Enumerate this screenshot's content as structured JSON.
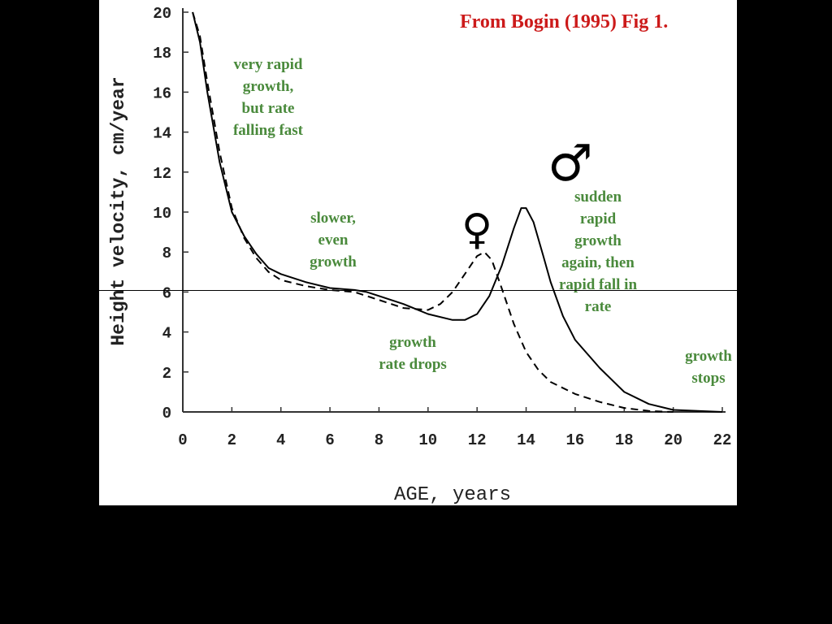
{
  "chart_data": {
    "type": "line",
    "title": "From Bogin (1995) Fig 1.",
    "xlabel": "AGE, years",
    "ylabel": "Height velocity, cm/year",
    "xlim": [
      0,
      22
    ],
    "ylim": [
      0,
      20
    ],
    "xticks": [
      "0",
      "2",
      "4",
      "6",
      "8",
      "10",
      "12",
      "14",
      "16",
      "18",
      "20",
      "22"
    ],
    "yticks": [
      "0",
      "2",
      "4",
      "6",
      "8",
      "10",
      "12",
      "14",
      "16",
      "18",
      "20"
    ],
    "series": [
      {
        "symbol": "♂",
        "style": "solid",
        "points": [
          [
            0.4,
            20
          ],
          [
            0.7,
            18.5
          ],
          [
            1,
            16
          ],
          [
            1.5,
            12.5
          ],
          [
            2,
            10
          ],
          [
            2.5,
            8.8
          ],
          [
            3,
            7.9
          ],
          [
            3.5,
            7.2
          ],
          [
            4,
            6.9
          ],
          [
            5,
            6.5
          ],
          [
            6,
            6.2
          ],
          [
            7,
            6.1
          ],
          [
            7.5,
            6.0
          ],
          [
            8,
            5.8
          ],
          [
            9,
            5.4
          ],
          [
            10,
            4.9
          ],
          [
            11,
            4.6
          ],
          [
            11.5,
            4.6
          ],
          [
            12,
            4.9
          ],
          [
            12.5,
            5.8
          ],
          [
            13,
            7.3
          ],
          [
            13.5,
            9.2
          ],
          [
            13.8,
            10.2
          ],
          [
            14,
            10.2
          ],
          [
            14.3,
            9.5
          ],
          [
            14.7,
            7.8
          ],
          [
            15,
            6.5
          ],
          [
            15.5,
            4.8
          ],
          [
            16,
            3.6
          ],
          [
            17,
            2.2
          ],
          [
            18,
            1.0
          ],
          [
            19,
            0.4
          ],
          [
            20,
            0.1
          ],
          [
            21,
            0.05
          ],
          [
            22,
            0
          ]
        ]
      },
      {
        "symbol": "♀",
        "style": "dashed",
        "points": [
          [
            0.4,
            20
          ],
          [
            0.7,
            18.8
          ],
          [
            1,
            16.5
          ],
          [
            1.5,
            13
          ],
          [
            2,
            10.2
          ],
          [
            2.5,
            8.7
          ],
          [
            3,
            7.7
          ],
          [
            3.5,
            7.0
          ],
          [
            4,
            6.6
          ],
          [
            5,
            6.3
          ],
          [
            6,
            6.1
          ],
          [
            7,
            6.0
          ],
          [
            8,
            5.6
          ],
          [
            9,
            5.2
          ],
          [
            10,
            5.1
          ],
          [
            10.5,
            5.4
          ],
          [
            11,
            6.0
          ],
          [
            11.5,
            6.9
          ],
          [
            12,
            7.8
          ],
          [
            12.3,
            8.0
          ],
          [
            12.6,
            7.6
          ],
          [
            13,
            6.2
          ],
          [
            13.5,
            4.4
          ],
          [
            14,
            3.0
          ],
          [
            14.5,
            2.1
          ],
          [
            15,
            1.5
          ],
          [
            16,
            0.9
          ],
          [
            17,
            0.5
          ],
          [
            18,
            0.2
          ],
          [
            19,
            0.05
          ],
          [
            20,
            0
          ]
        ]
      }
    ],
    "annotations": [
      "very rapid\ngrowth,\nbut rate\nfalling fast",
      "slower,\neven\ngrowth",
      "growth\nrate drops",
      "sudden\nrapid\ngrowth\nagain, then\nrapid fall in\nrate",
      "growth\nstops"
    ],
    "colors": {
      "title": "#cc1a1a",
      "annotation": "#4a8a3c",
      "line": "#000000"
    },
    "grid": false
  }
}
